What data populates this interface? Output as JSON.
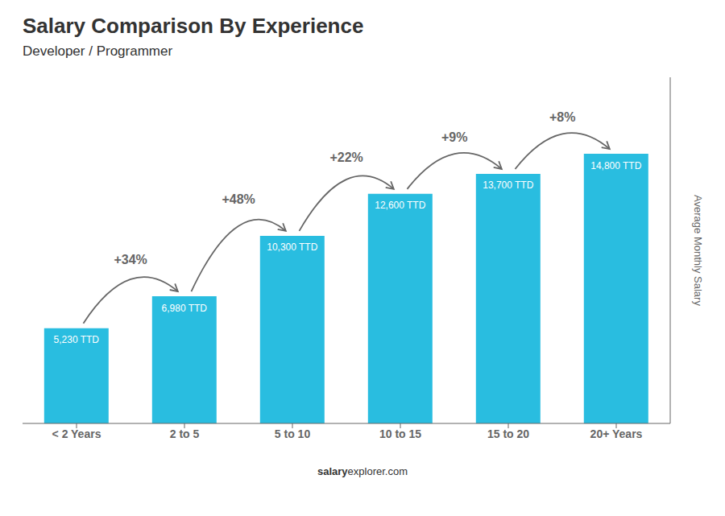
{
  "chart_data": {
    "type": "bar",
    "title": "Salary Comparison By Experience",
    "subtitle": "Developer / Programmer",
    "categories": [
      "< 2 Years",
      "2 to 5",
      "5 to 10",
      "10 to 15",
      "15 to 20",
      "20+ Years"
    ],
    "values": [
      5230,
      6980,
      10300,
      12600,
      13700,
      14800
    ],
    "value_labels": [
      "5,230 TTD",
      "6,980 TTD",
      "10,300 TTD",
      "12,600 TTD",
      "13,700 TTD",
      "14,800 TTD"
    ],
    "data_labels": true,
    "annotations": [
      "+34%",
      "+48%",
      "+22%",
      "+9%",
      "+8%"
    ],
    "ylabel": "Average Monthly Salary",
    "footer": [
      "salary",
      "explorer.com"
    ],
    "color": "#29bde0",
    "ylim": [
      0,
      19000
    ],
    "grid": false,
    "tick_labels": "x"
  }
}
